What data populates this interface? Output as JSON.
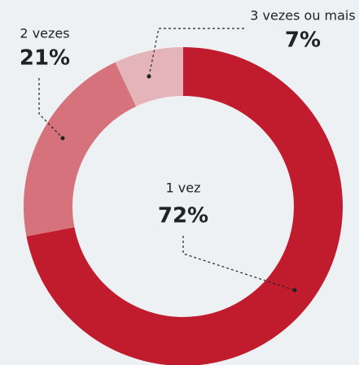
{
  "chart_data": {
    "type": "donut",
    "categories": [
      "1 vez",
      "2 vezes",
      "3 vezes ou mais"
    ],
    "values": [
      72,
      21,
      7
    ],
    "value_labels": [
      "72%",
      "21%",
      "7%"
    ],
    "colors": [
      "#c11b2e",
      "#d5727b",
      "#e5b4ba"
    ]
  }
}
